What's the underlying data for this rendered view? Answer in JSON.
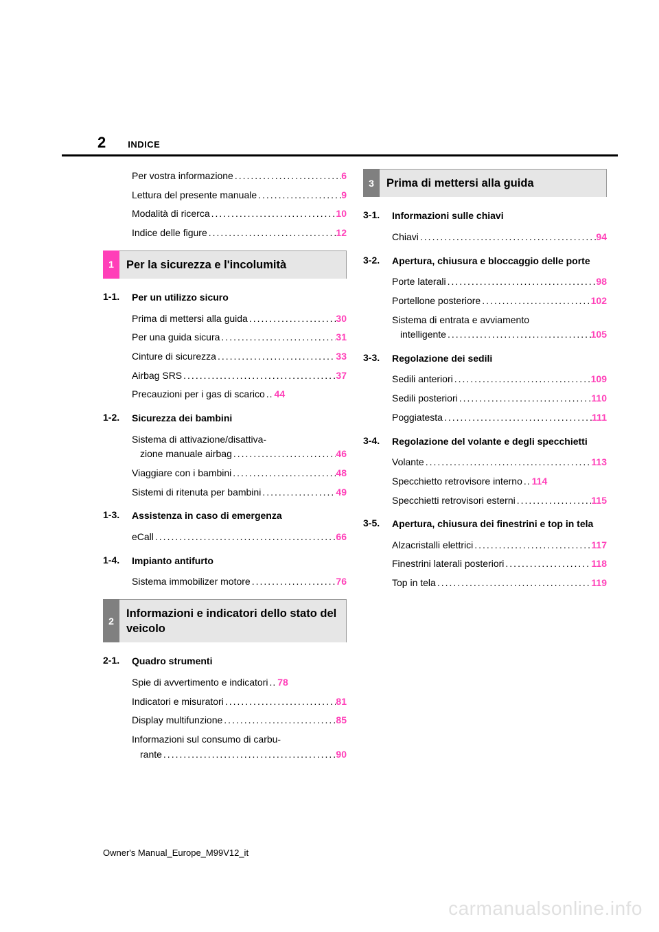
{
  "page_number": "2",
  "header_label": "INDICE",
  "footer": "Owner's Manual_Europe_M99V12_it",
  "watermark": "carmanualsonline.info",
  "colors": {
    "page_link": "#ff3fb8",
    "rule": "#000000",
    "bar_bg": "#e6e6e6",
    "bar_border": "#9a9a9a",
    "tab1": "#ff3fb8",
    "tab2": "#808080",
    "tab3": "#808080",
    "watermark": "rgba(0,0,0,0.12)"
  },
  "intro": [
    {
      "label": "Per vostra informazione",
      "page": "6"
    },
    {
      "label": "Lettura del presente manuale",
      "page": "9"
    },
    {
      "label": "Modalità di ricerca",
      "page": "10"
    },
    {
      "label": "Indice delle figure",
      "page": "12"
    }
  ],
  "chapters": [
    {
      "num": "1",
      "tab_color": "#ff3fb8",
      "title": "Per la sicurezza e l'incolumità",
      "sections": [
        {
          "num": "1-1.",
          "title": "Per un utilizzo sicuro",
          "entries": [
            {
              "label": "Prima di mettersi alla guida",
              "page": "30"
            },
            {
              "label": "Per una guida sicura",
              "page": "31"
            },
            {
              "label": "Cinture di sicurezza",
              "page": "33"
            },
            {
              "label": "Airbag SRS",
              "page": "37"
            },
            {
              "label": "Precauzioni per i gas di scarico",
              "page": "44",
              "tight": true
            }
          ]
        },
        {
          "num": "1-2.",
          "title": "Sicurezza dei bambini",
          "entries": [
            {
              "label1": "Sistema di attivazione/disattiva-",
              "label2": "zione manuale airbag",
              "page": "46",
              "multi": true
            },
            {
              "label": "Viaggiare con i bambini",
              "page": "48"
            },
            {
              "label": "Sistemi di ritenuta per bambini",
              "page": "49"
            }
          ]
        },
        {
          "num": "1-3.",
          "title": "Assistenza in caso di emergenza",
          "entries": [
            {
              "label": "eCall",
              "page": "66"
            }
          ]
        },
        {
          "num": "1-4.",
          "title": "Impianto antifurto",
          "entries": [
            {
              "label": "Sistema immobilizer motore",
              "page": "76"
            }
          ]
        }
      ]
    },
    {
      "num": "2",
      "tab_color": "#808080",
      "title": "Informazioni e indicatori dello stato del veicolo",
      "sections": [
        {
          "num": "2-1.",
          "title": "Quadro strumenti",
          "entries": [
            {
              "label": "Spie di avvertimento e indicatori",
              "page": "78",
              "tight": true
            },
            {
              "label": "Indicatori e misuratori",
              "page": "81"
            },
            {
              "label": "Display multifunzione",
              "page": "85"
            },
            {
              "label1": "Informazioni sul consumo di carbu-",
              "label2": "rante",
              "page": "90",
              "multi": true
            }
          ]
        }
      ]
    },
    {
      "num": "3",
      "tab_color": "#808080",
      "title": "Prima di mettersi alla guida",
      "sections": [
        {
          "num": "3-1.",
          "title": "Informazioni sulle chiavi",
          "entries": [
            {
              "label": "Chiavi",
              "page": "94"
            }
          ]
        },
        {
          "num": "3-2.",
          "title": "Apertura, chiusura e bloccaggio delle porte",
          "entries": [
            {
              "label": "Porte laterali",
              "page": "98"
            },
            {
              "label": "Portellone posteriore",
              "page": "102"
            },
            {
              "label1": "Sistema di entrata e avviamento",
              "label2": "intelligente",
              "page": "105",
              "multi": true
            }
          ]
        },
        {
          "num": "3-3.",
          "title": "Regolazione dei sedili",
          "entries": [
            {
              "label": "Sedili anteriori",
              "page": "109"
            },
            {
              "label": "Sedili posteriori",
              "page": "110"
            },
            {
              "label": "Poggiatesta",
              "page": "111"
            }
          ]
        },
        {
          "num": "3-4.",
          "title": "Regolazione del volante e degli specchietti",
          "entries": [
            {
              "label": "Volante",
              "page": "113"
            },
            {
              "label": "Specchietto retrovisore interno",
              "page": "114",
              "tight": true
            },
            {
              "label": "Specchietti retrovisori esterni",
              "page": "115"
            }
          ]
        },
        {
          "num": "3-5.",
          "title": "Apertura, chiusura dei finestrini e top in tela",
          "entries": [
            {
              "label": "Alzacristalli elettrici",
              "page": "117"
            },
            {
              "label": "Finestrini laterali posteriori",
              "page": "118"
            },
            {
              "label": "Top in tela",
              "page": "119"
            }
          ]
        }
      ]
    }
  ]
}
